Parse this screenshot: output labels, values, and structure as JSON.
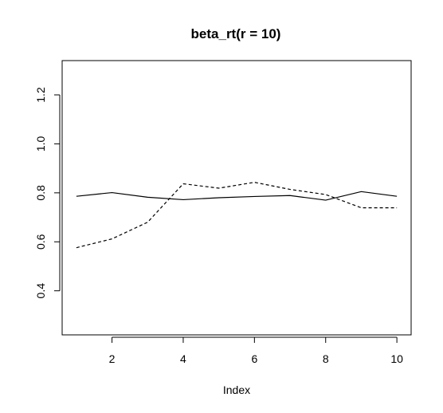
{
  "chart_data": {
    "type": "line",
    "title": "beta_rt(r = 10)",
    "xlabel": "Index",
    "ylabel": "",
    "xlim": [
      0.6,
      10.4
    ],
    "ylim": [
      0.22,
      1.34
    ],
    "xticks": [
      2,
      4,
      6,
      8,
      10
    ],
    "xtick_labels": [
      "2",
      "4",
      "6",
      "8",
      "10"
    ],
    "yticks": [
      0.4,
      0.6,
      0.8,
      1.0,
      1.2
    ],
    "ytick_labels": [
      "0.4",
      "0.6",
      "0.8",
      "1.0",
      "1.2"
    ],
    "grid": false,
    "x": [
      1,
      2,
      3,
      4,
      5,
      6,
      7,
      8,
      9,
      10
    ],
    "series": [
      {
        "style": "solid",
        "values": [
          0.786,
          0.801,
          0.782,
          0.772,
          0.78,
          0.785,
          0.789,
          0.77,
          0.805,
          0.786
        ]
      },
      {
        "style": "dashed",
        "values": [
          0.576,
          0.612,
          0.68,
          0.837,
          0.819,
          0.843,
          0.814,
          0.793,
          0.739,
          0.739
        ]
      }
    ]
  }
}
